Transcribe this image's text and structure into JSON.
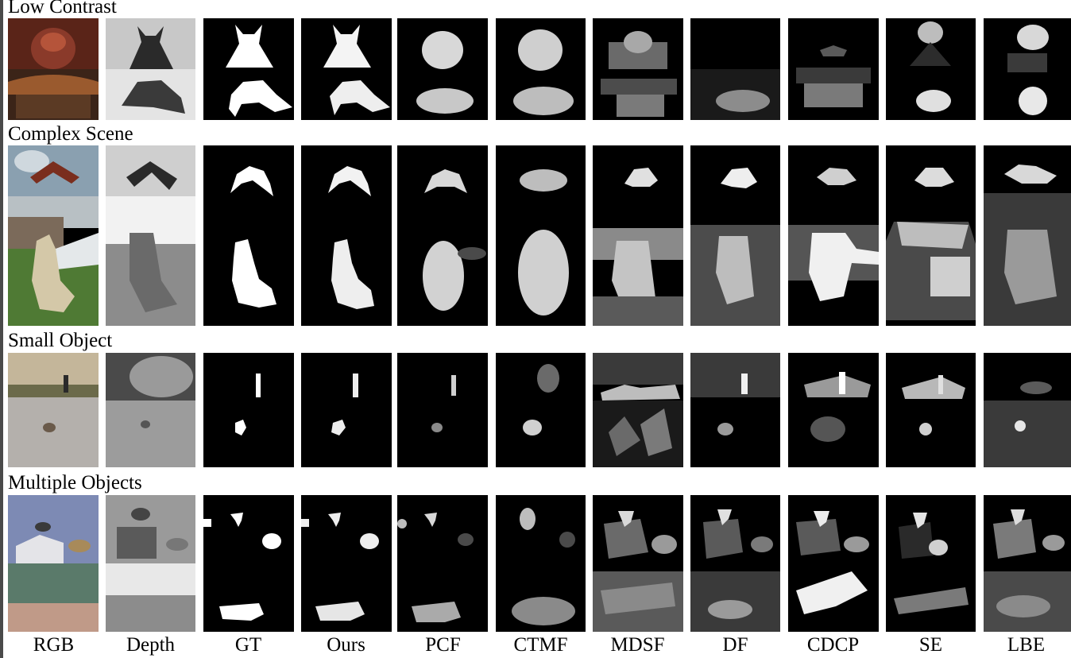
{
  "section_titles": {
    "low_contrast": "Low Contrast",
    "complex_scene": "Complex Scene",
    "small_object": "Small Object",
    "multiple_objects": "Multiple Objects"
  },
  "column_labels": [
    "RGB",
    "Depth",
    "GT",
    "Ours",
    "PCF",
    "CTMF",
    "MDSF",
    "DF",
    "CDCP",
    "SE",
    "LBE"
  ],
  "colors": {
    "background": "#ffffff",
    "panel_bg": "#000000",
    "saliency_fg": "#ffffff",
    "edge_bar": "#4a4a4a"
  }
}
